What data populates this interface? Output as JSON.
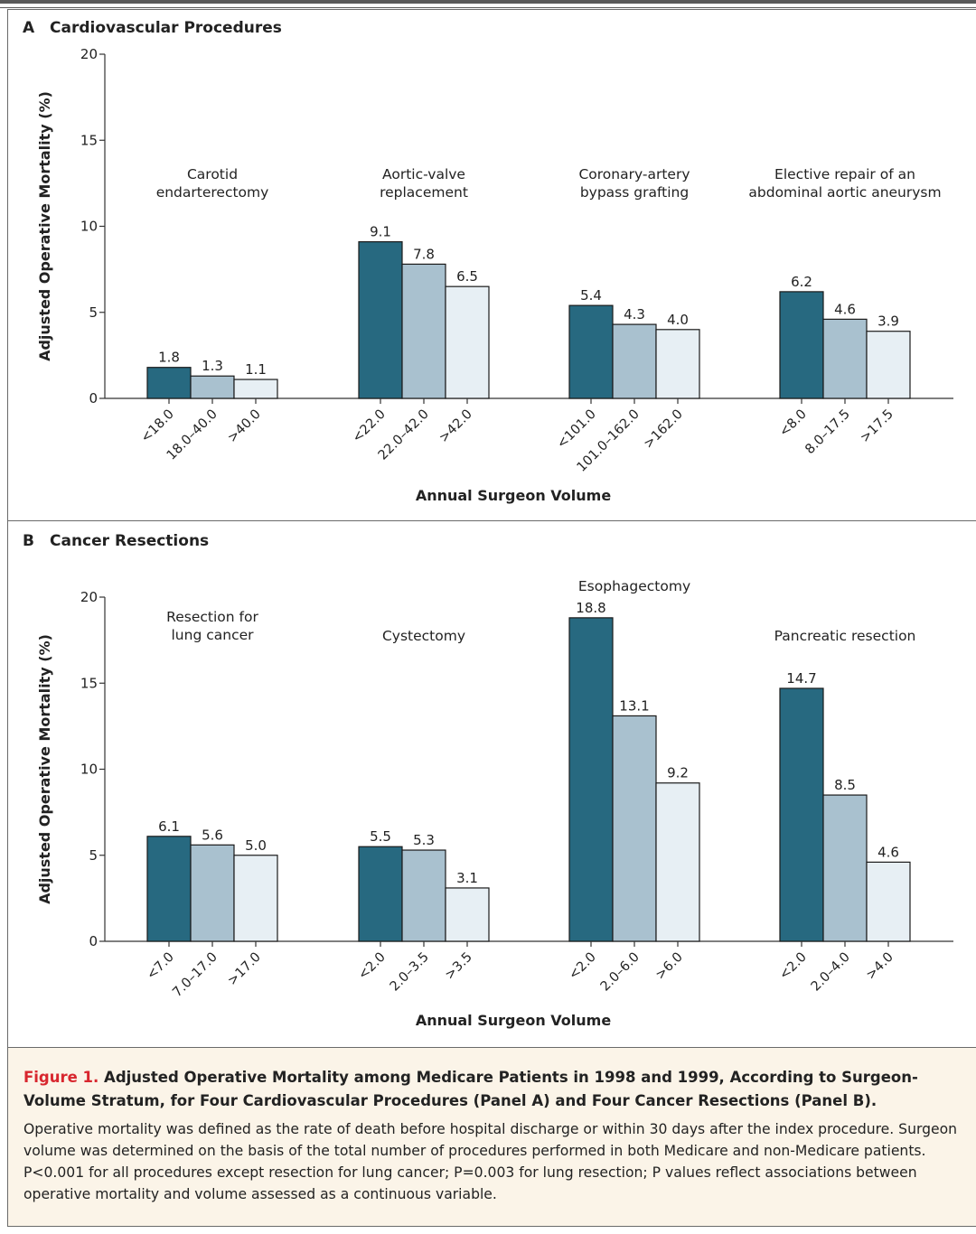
{
  "chart_data": [
    {
      "type": "bar",
      "panel_letter": "A",
      "title": "Cardiovascular Procedures",
      "ylabel": "Adjusted Operative Mortality (%)",
      "xlabel": "Annual Surgeon Volume",
      "ylim": [
        0,
        20
      ],
      "yticks": [
        "0",
        "5",
        "10",
        "15",
        "20"
      ],
      "bar_colors": [
        "#276980",
        "#a9c1cf",
        "#e7eff4"
      ],
      "groups": [
        {
          "name": "Carotid endarterectomy",
          "name_lines": [
            "Carotid",
            "endarterectomy"
          ],
          "categories": [
            "<18.0",
            "18.0–40.0",
            ">40.0"
          ],
          "values": [
            1.8,
            1.3,
            1.1
          ],
          "labels": [
            "1.8",
            "1.3",
            "1.1"
          ]
        },
        {
          "name": "Aortic-valve replacement",
          "name_lines": [
            "Aortic-valve",
            "replacement"
          ],
          "categories": [
            "<22.0",
            "22.0–42.0",
            ">42.0"
          ],
          "values": [
            9.1,
            7.8,
            6.5
          ],
          "labels": [
            "9.1",
            "7.8",
            "6.5"
          ]
        },
        {
          "name": "Coronary-artery bypass grafting",
          "name_lines": [
            "Coronary-artery",
            "bypass grafting"
          ],
          "categories": [
            "<101.0",
            "101.0–162.0",
            ">162.0"
          ],
          "values": [
            5.4,
            4.3,
            4.0
          ],
          "labels": [
            "5.4",
            "4.3",
            "4.0"
          ]
        },
        {
          "name": "Elective repair of an abdominal aortic aneurysm",
          "name_lines": [
            "Elective repair of an",
            "abdominal aortic aneurysm"
          ],
          "categories": [
            "<8.0",
            "8.0–17.5",
            ">17.5"
          ],
          "values": [
            6.2,
            4.6,
            3.9
          ],
          "labels": [
            "6.2",
            "4.6",
            "3.9"
          ]
        }
      ]
    },
    {
      "type": "bar",
      "panel_letter": "B",
      "title": "Cancer Resections",
      "ylabel": "Adjusted Operative Mortality (%)",
      "xlabel": "Annual Surgeon Volume",
      "ylim": [
        0,
        20
      ],
      "yticks": [
        "0",
        "5",
        "10",
        "15",
        "20"
      ],
      "bar_colors": [
        "#276980",
        "#a9c1cf",
        "#e7eff4"
      ],
      "groups": [
        {
          "name": "Resection for lung cancer",
          "name_lines": [
            "Resection for",
            "lung cancer"
          ],
          "categories": [
            "<7.0",
            "7.0–17.0",
            ">17.0"
          ],
          "values": [
            6.1,
            5.6,
            5.0
          ],
          "labels": [
            "6.1",
            "5.6",
            "5.0"
          ]
        },
        {
          "name": "Cystectomy",
          "name_lines": [
            "Cystectomy"
          ],
          "categories": [
            "<2.0",
            "2.0–3.5",
            ">3.5"
          ],
          "values": [
            5.5,
            5.3,
            3.1
          ],
          "labels": [
            "5.5",
            "5.3",
            "3.1"
          ]
        },
        {
          "name": "Esophagectomy",
          "name_lines": [
            "Esophagectomy"
          ],
          "categories": [
            "<2.0",
            "2.0–6.0",
            ">6.0"
          ],
          "values": [
            18.8,
            13.1,
            9.2
          ],
          "labels": [
            "18.8",
            "13.1",
            "9.2"
          ]
        },
        {
          "name": "Pancreatic resection",
          "name_lines": [
            "Pancreatic resection"
          ],
          "categories": [
            "<2.0",
            "2.0–4.0",
            ">4.0"
          ],
          "values": [
            14.7,
            8.5,
            4.6
          ],
          "labels": [
            "14.7",
            "8.5",
            "4.6"
          ]
        }
      ]
    }
  ],
  "caption": {
    "figure_label": "Figure 1.",
    "title": " Adjusted Operative Mortality among Medicare Patients in 1998 and 1999, According to Surgeon-Volume Stratum, for Four Cardiovascular Procedures (Panel A) and Four Cancer Resections (Panel B).",
    "text": "Operative mortality was defined as the rate of death before hospital discharge or within 30 days after the index procedure. Surgeon volume was determined on the basis of the total number of procedures performed in both Medicare and non-Medicare patients. P<0.001 for all procedures except resection for lung cancer; P=0.003 for lung resection; P values reflect associations between operative mortality and volume assessed as a continuous variable."
  }
}
